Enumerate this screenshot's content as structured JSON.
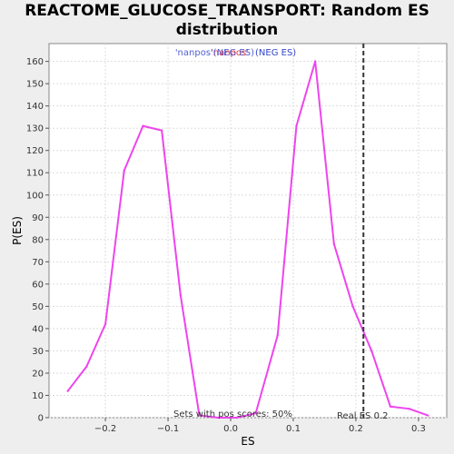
{
  "title_line1": "REACTOME_GLUCOSE_TRANSPORT: Random ES",
  "title_line2": "distribution",
  "chart_data": {
    "type": "line",
    "xlabel": "ES",
    "ylabel": "P(ES)",
    "xlim": [
      -0.29,
      0.345
    ],
    "ylim": [
      0,
      168
    ],
    "xticks": [
      -0.2,
      -0.1,
      0.0,
      0.1,
      0.2,
      0.3
    ],
    "xtick_labels": [
      "−0.2",
      "−0.1",
      "0.0",
      "0.1",
      "0.2",
      "0.3"
    ],
    "yticks": [
      0,
      10,
      20,
      30,
      40,
      50,
      60,
      70,
      80,
      90,
      100,
      110,
      120,
      130,
      140,
      150,
      160
    ],
    "grid": true,
    "series": [
      {
        "color": "#ee44ee",
        "x": [
          -0.26,
          -0.23,
          -0.2,
          -0.17,
          -0.14,
          -0.11,
          -0.08,
          -0.05,
          -0.02,
          0.01,
          0.04,
          0.075,
          0.105,
          0.135,
          0.165,
          0.195,
          0.225,
          0.255,
          0.285,
          0.315
        ],
        "y": [
          12,
          23,
          42,
          111,
          131,
          129,
          55,
          1,
          0,
          0,
          2,
          37,
          131,
          160,
          78,
          50,
          30,
          5,
          4,
          1
        ]
      }
    ],
    "vline": {
      "x": 0.212,
      "color": "#333333",
      "style": "dashed"
    },
    "annotations": {
      "pos_scores": "Sets with pos scores: 50%",
      "real_es": "Real ES 0.2"
    },
    "legend": {
      "placement": "top-center",
      "text_red": "'nanpos'",
      "text_blue": "(NEG ES)",
      "overlap_text": "'nanpos'(NEG ES)"
    }
  }
}
